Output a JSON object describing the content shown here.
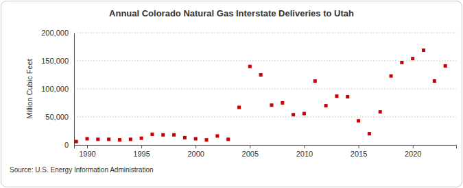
{
  "chart_data": {
    "type": "scatter",
    "title": "Annual Colorado Natural Gas Interstate Deliveries to Utah",
    "y_label": "Million Cubic Feet",
    "source": "Source: U.S. Energy Information Administration",
    "x": [
      1989,
      1990,
      1991,
      1992,
      1993,
      1994,
      1995,
      1996,
      1997,
      1998,
      1999,
      2000,
      2001,
      2002,
      2003,
      2004,
      2005,
      2006,
      2007,
      2008,
      2009,
      2010,
      2011,
      2012,
      2013,
      2014,
      2015,
      2016,
      2017,
      2018,
      2019,
      2020,
      2021,
      2022,
      2023
    ],
    "values": [
      6000,
      11000,
      10000,
      10000,
      9000,
      10000,
      12000,
      19000,
      18000,
      18000,
      13000,
      11000,
      9000,
      16000,
      10000,
      67000,
      140000,
      125000,
      71000,
      75000,
      54000,
      56000,
      114000,
      70000,
      87000,
      86000,
      43000,
      20000,
      59000,
      123000,
      147000,
      154000,
      169000,
      114000,
      141000
    ],
    "color": "#cc0000",
    "marker": "square",
    "xlim": [
      1988.8,
      2024
    ],
    "xticks": [
      1990,
      1995,
      2000,
      2005,
      2010,
      2015,
      2020
    ],
    "ylim": [
      0,
      200000
    ],
    "yticks": [
      0,
      {
        "value": 50000,
        "label": "50,000"
      },
      {
        "value": 100000,
        "label": "100,000"
      },
      {
        "value": 150000,
        "label": "150,000"
      },
      {
        "value": 200000,
        "label": "200,000"
      }
    ],
    "grid": true
  }
}
